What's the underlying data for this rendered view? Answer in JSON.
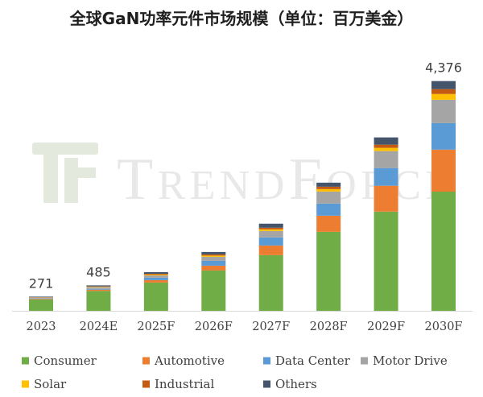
{
  "watermark": {
    "text": "TrendForce",
    "text_color": "#e8e8e8",
    "logo_color": "#e3e9dc"
  },
  "chart_data": {
    "type": "bar",
    "stacked": true,
    "title": "全球GaN功率元件市场规模（单位：百万美金）",
    "xlabel": "",
    "ylabel": "",
    "grid": false,
    "legend_position": "bottom",
    "categories": [
      "2023",
      "2024E",
      "2025F",
      "2026F",
      "2027F",
      "2028F",
      "2029F",
      "2030F"
    ],
    "series": [
      {
        "name": "Consumer",
        "color": "#70AD47",
        "values": [
          215,
          380,
          538,
          768,
          1060,
          1505,
          1890,
          2270
        ]
      },
      {
        "name": "Automotive",
        "color": "#ED7D31",
        "values": [
          12,
          23,
          46,
          92,
          184,
          307,
          492,
          800
        ]
      },
      {
        "name": "Data Center",
        "color": "#5B9BD5",
        "values": [
          8,
          15,
          46,
          92,
          154,
          230,
          338,
          505
        ]
      },
      {
        "name": "Motor Drive",
        "color": "#A5A5A5",
        "values": [
          18,
          31,
          46,
          77,
          123,
          230,
          323,
          445
        ]
      },
      {
        "name": "Solar",
        "color": "#FFC000",
        "values": [
          4,
          8,
          15,
          23,
          31,
          46,
          61,
          110
        ]
      },
      {
        "name": "Industrial",
        "color": "#C55A11",
        "values": [
          4,
          8,
          15,
          23,
          31,
          46,
          61,
          92
        ]
      },
      {
        "name": "Others",
        "color": "#44546A",
        "values": [
          10,
          20,
          31,
          46,
          77,
          77,
          138,
          154
        ]
      }
    ],
    "total_labels": [
      "271",
      "485",
      null,
      null,
      null,
      null,
      null,
      "4,376"
    ]
  }
}
